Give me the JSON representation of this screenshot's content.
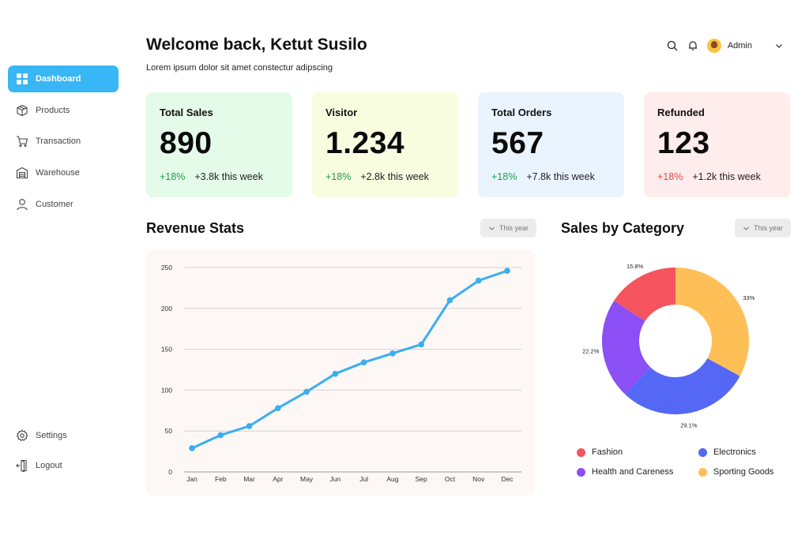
{
  "header": {
    "title": "Welcome back, Ketut Susilo",
    "subtitle": "Lorem ipsum dolor sit amet constectur adipscing",
    "user_name": "Admin"
  },
  "sidebar": {
    "items": [
      {
        "label": "Dashboard",
        "icon": "grid-icon"
      },
      {
        "label": "Products",
        "icon": "box-icon"
      },
      {
        "label": "Transaction",
        "icon": "cart-icon"
      },
      {
        "label": "Warehouse",
        "icon": "warehouse-icon"
      },
      {
        "label": "Customer",
        "icon": "user-icon"
      }
    ],
    "bottom": [
      {
        "label": "Settings",
        "icon": "gear-icon"
      },
      {
        "label": "Logout",
        "icon": "logout-icon"
      }
    ]
  },
  "cards": [
    {
      "title": "Total Sales",
      "value": "890",
      "pct": "+18%",
      "note": "+3.8k this week",
      "bg": "#e4fbe9",
      "pct_color": "green"
    },
    {
      "title": "Visitor",
      "value": "1.234",
      "pct": "+18%",
      "note": "+2.8k this week",
      "bg": "#f9fde0",
      "pct_color": "green"
    },
    {
      "title": "Total Orders",
      "value": "567",
      "pct": "+18%",
      "note": "+7.8k this week",
      "bg": "#eaf4fe",
      "pct_color": "green"
    },
    {
      "title": "Refunded",
      "value": "123",
      "pct": "+18%",
      "note": "+1.2k this week",
      "bg": "#ffecec",
      "pct_color": "red"
    }
  ],
  "revenue": {
    "title": "Revenue Stats",
    "filter": "This year"
  },
  "category": {
    "title": "Sales by Category",
    "filter": "This year",
    "legend": [
      "Fashion",
      "Electronics",
      "Health and Careness",
      "Sporting Goods"
    ]
  },
  "colors": {
    "accent": "#38b6f5",
    "line": "#3aaef0",
    "fashion": "#f5535e",
    "electronics": "#5468f5",
    "health": "#8c4ef5",
    "sporting": "#ffbf57"
  },
  "chart_data": [
    {
      "type": "line",
      "title": "Revenue Stats",
      "categories": [
        "Jan",
        "Feb",
        "Mar",
        "Apr",
        "May",
        "Jun",
        "Jul",
        "Aug",
        "Sep",
        "Oct",
        "Nov",
        "Dec"
      ],
      "values": [
        29,
        45,
        56,
        78,
        98,
        120,
        134,
        145,
        156,
        210,
        234,
        246
      ],
      "yticks": [
        0,
        50,
        100,
        150,
        200,
        250
      ],
      "ylim": [
        0,
        250
      ],
      "xlabel": "",
      "ylabel": ""
    },
    {
      "type": "pie",
      "title": "Sales by Category",
      "labels": [
        "Sporting Goods",
        "Electronics",
        "Health and Careness",
        "Fashion"
      ],
      "values": [
        33,
        29.1,
        22.2,
        15.8
      ],
      "value_labels": [
        "33%",
        "29.1%",
        "22.2%",
        "15.8%"
      ]
    }
  ]
}
